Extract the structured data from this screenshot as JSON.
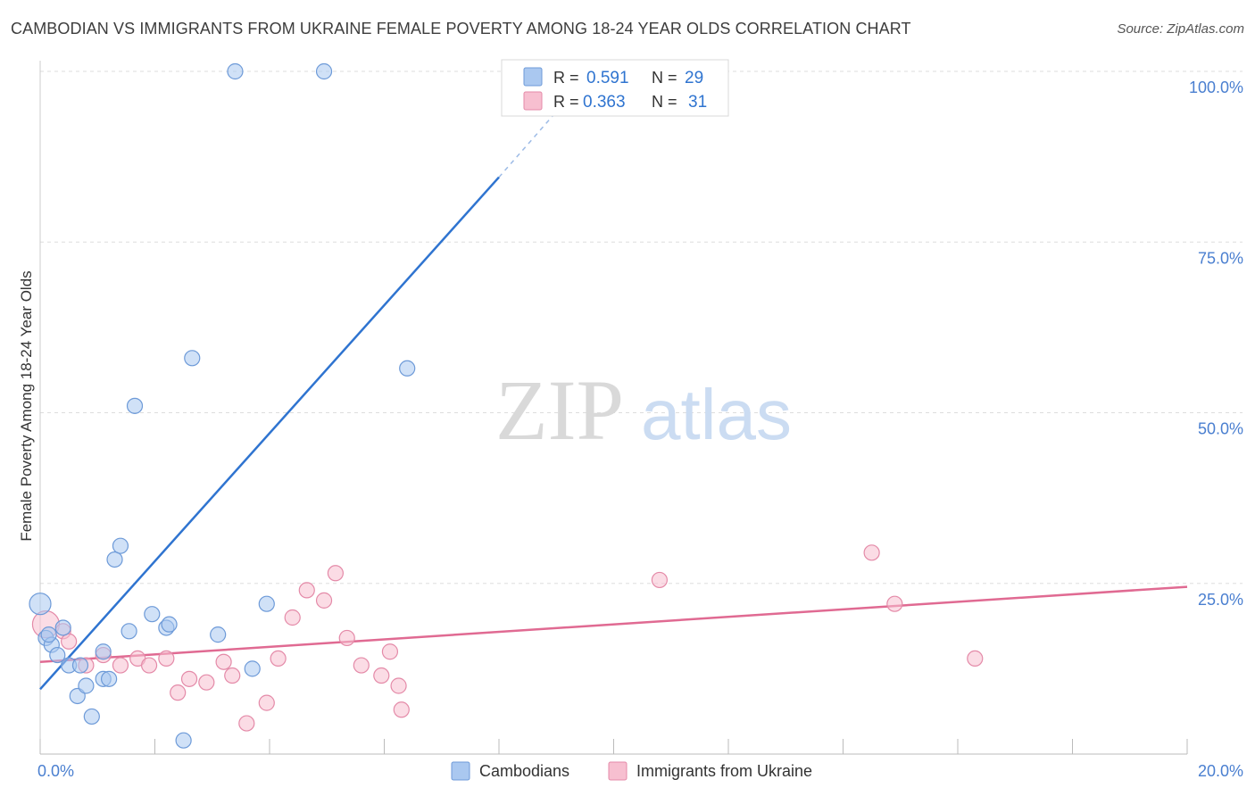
{
  "header": {
    "title": "CAMBODIAN VS IMMIGRANTS FROM UKRAINE FEMALE POVERTY AMONG 18-24 YEAR OLDS CORRELATION CHART",
    "source": "Source: ZipAtlas.com"
  },
  "watermark": {
    "zip": "ZIP",
    "atlas": "atlas"
  },
  "legend_top": {
    "rows": [
      {
        "r_label": "R =",
        "r_value": "0.591",
        "n_label": "N =",
        "n_value": "29"
      },
      {
        "r_label": "R =",
        "r_value": "0.363",
        "n_label": "N =",
        "n_value": "31"
      }
    ]
  },
  "colors": {
    "blue_fill": "#aac8f0",
    "blue_stroke": "#6d9ad8",
    "blue_line": "#2f74d0",
    "pink_fill": "#f7bfd0",
    "pink_stroke": "#e48aa8",
    "pink_line": "#e06a92",
    "tick_label": "#4a7fd0",
    "grid": "#dddddd"
  },
  "chart_data": {
    "type": "scatter",
    "title": "CAMBODIAN VS IMMIGRANTS FROM UKRAINE FEMALE POVERTY AMONG 18-24 YEAR OLDS CORRELATION CHART",
    "xlabel": "",
    "ylabel": "Female Poverty Among 18-24 Year Olds",
    "xlim": [
      0,
      20
    ],
    "ylim": [
      0,
      100
    ],
    "x_tick_labels": [
      "0.0%",
      "20.0%"
    ],
    "y_ticks": [
      25,
      50,
      75,
      100
    ],
    "y_tick_labels": [
      "25.0%",
      "50.0%",
      "75.0%",
      "100.0%"
    ],
    "legend": [
      "Cambodians",
      "Immigrants from Ukraine"
    ],
    "series": [
      {
        "name": "Cambodians",
        "color": "blue",
        "R": 0.591,
        "N": 29,
        "trend": {
          "x0": 0,
          "y0": 9.5,
          "x1": 8.0,
          "y1": 84.5,
          "dash_x1": 9.2,
          "dash_y1": 96
        },
        "points": [
          [
            0.0,
            22.0
          ],
          [
            0.1,
            17.0
          ],
          [
            0.2,
            16.0
          ],
          [
            0.3,
            14.5
          ],
          [
            0.4,
            18.5
          ],
          [
            0.5,
            13.0
          ],
          [
            0.65,
            8.5
          ],
          [
            0.7,
            13.0
          ],
          [
            0.8,
            10.0
          ],
          [
            0.9,
            5.5
          ],
          [
            1.1,
            11.0
          ],
          [
            1.1,
            15.0
          ],
          [
            1.2,
            11.0
          ],
          [
            1.3,
            28.5
          ],
          [
            1.4,
            30.5
          ],
          [
            1.55,
            18.0
          ],
          [
            1.65,
            51.0
          ],
          [
            1.95,
            20.5
          ],
          [
            2.2,
            18.5
          ],
          [
            2.25,
            19.0
          ],
          [
            2.5,
            2.0
          ],
          [
            2.65,
            58.0
          ],
          [
            3.1,
            17.5
          ],
          [
            3.4,
            100.0
          ],
          [
            3.7,
            12.5
          ],
          [
            3.95,
            22.0
          ],
          [
            4.95,
            100.0
          ],
          [
            6.4,
            56.5
          ],
          [
            0.15,
            17.5
          ]
        ]
      },
      {
        "name": "Immigrants from Ukraine",
        "color": "pink",
        "R": 0.363,
        "N": 31,
        "trend": {
          "x0": 0,
          "y0": 13.5,
          "x1": 20,
          "y1": 24.5
        },
        "points": [
          [
            0.1,
            19.0
          ],
          [
            0.4,
            18.0
          ],
          [
            0.5,
            16.5
          ],
          [
            0.8,
            13.0
          ],
          [
            1.1,
            14.5
          ],
          [
            1.4,
            13.0
          ],
          [
            1.7,
            14.0
          ],
          [
            1.9,
            13.0
          ],
          [
            2.2,
            14.0
          ],
          [
            2.4,
            9.0
          ],
          [
            2.6,
            11.0
          ],
          [
            2.9,
            10.5
          ],
          [
            3.2,
            13.5
          ],
          [
            3.35,
            11.5
          ],
          [
            3.6,
            4.5
          ],
          [
            3.95,
            7.5
          ],
          [
            4.15,
            14.0
          ],
          [
            4.4,
            20.0
          ],
          [
            4.65,
            24.0
          ],
          [
            4.95,
            22.5
          ],
          [
            5.15,
            26.5
          ],
          [
            5.35,
            17.0
          ],
          [
            5.6,
            13.0
          ],
          [
            5.95,
            11.5
          ],
          [
            6.1,
            15.0
          ],
          [
            6.25,
            10.0
          ],
          [
            6.3,
            6.5
          ],
          [
            10.8,
            25.5
          ],
          [
            14.5,
            29.5
          ],
          [
            14.9,
            22.0
          ],
          [
            16.3,
            14.0
          ]
        ]
      }
    ]
  }
}
